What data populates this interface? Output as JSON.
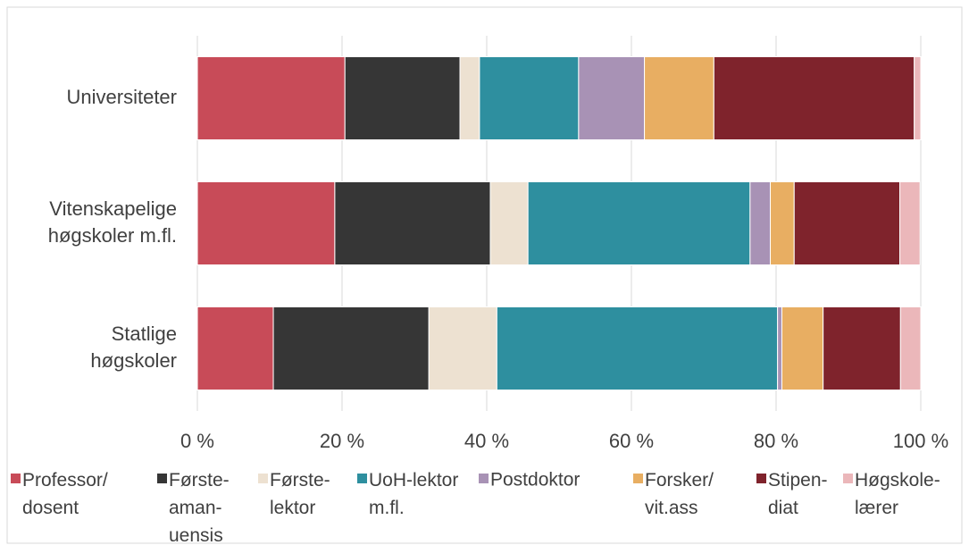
{
  "chart_data": {
    "type": "stacked-barh",
    "categories": [
      "Universiteter",
      "Vitenskapelige\nhøgskoler m.fl.",
      "Statlige\nhøgskoler"
    ],
    "series": [
      {
        "name": "Professor/\ndosent",
        "color": "#c84b58",
        "values": [
          20.4,
          19.0,
          10.5
        ]
      },
      {
        "name": "Første-\naman-\nuensis",
        "color": "#363636",
        "values": [
          15.9,
          21.5,
          21.5
        ]
      },
      {
        "name": "Første-\nlektor",
        "color": "#ede1d1",
        "values": [
          2.7,
          5.2,
          9.4
        ]
      },
      {
        "name": "UoH-lektor\nm.fl.",
        "color": "#2e8f9f",
        "values": [
          13.7,
          30.7,
          38.8
        ]
      },
      {
        "name": "Postdoktor",
        "color": "#a892b5",
        "values": [
          9.1,
          2.8,
          0.6
        ]
      },
      {
        "name": "Forsker/\nvit.ass",
        "color": "#e8ae62",
        "values": [
          9.6,
          3.3,
          5.7
        ]
      },
      {
        "name": "Stipen-\ndiat",
        "color": "#7f232c",
        "values": [
          27.7,
          14.6,
          10.7
        ]
      },
      {
        "name": "Høgskole-\nlærer",
        "color": "#ebb7ba",
        "values": [
          0.9,
          2.8,
          2.8
        ]
      }
    ],
    "xlim": [
      0,
      100
    ],
    "xticks": [
      {
        "value": 0,
        "label": "0 %"
      },
      {
        "value": 20,
        "label": "20 %"
      },
      {
        "value": 40,
        "label": "40 %"
      },
      {
        "value": 60,
        "label": "60 %"
      },
      {
        "value": 80,
        "label": "80 %"
      },
      {
        "value": 100,
        "label": "100 %"
      }
    ],
    "grid": true
  }
}
